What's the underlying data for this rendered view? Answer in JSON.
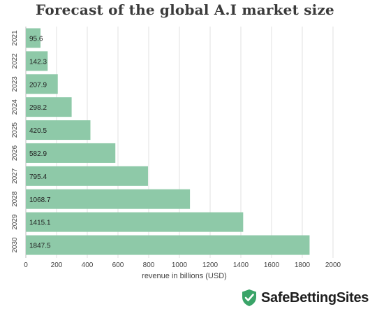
{
  "chart_data": {
    "type": "bar",
    "orientation": "horizontal",
    "title": "Forecast of the global A.I market size",
    "xlabel": "revenue in billions (USD)",
    "ylabel": "",
    "categories": [
      "2021",
      "2022",
      "2023",
      "2024",
      "2025",
      "2026",
      "2027",
      "2028",
      "2029",
      "2030"
    ],
    "values": [
      95.6,
      142.3,
      207.9,
      298.2,
      420.5,
      582.9,
      795.4,
      1068.7,
      1415.1,
      1847.5
    ],
    "value_labels": [
      "95.6",
      "142.3",
      "207.9",
      "298.2",
      "420.5",
      "582.9",
      "795.4",
      "1068.7",
      "1415.1",
      "1847.5"
    ],
    "xlim": [
      0,
      2000
    ],
    "xticks": [
      0,
      200,
      400,
      600,
      800,
      1000,
      1200,
      1400,
      1600,
      1800,
      2000
    ],
    "grid": true,
    "bar_color": "#8ec9a8"
  },
  "brand": {
    "name": "SafeBettingSites",
    "icon": "shield-check-icon",
    "color": "#3aa468"
  }
}
